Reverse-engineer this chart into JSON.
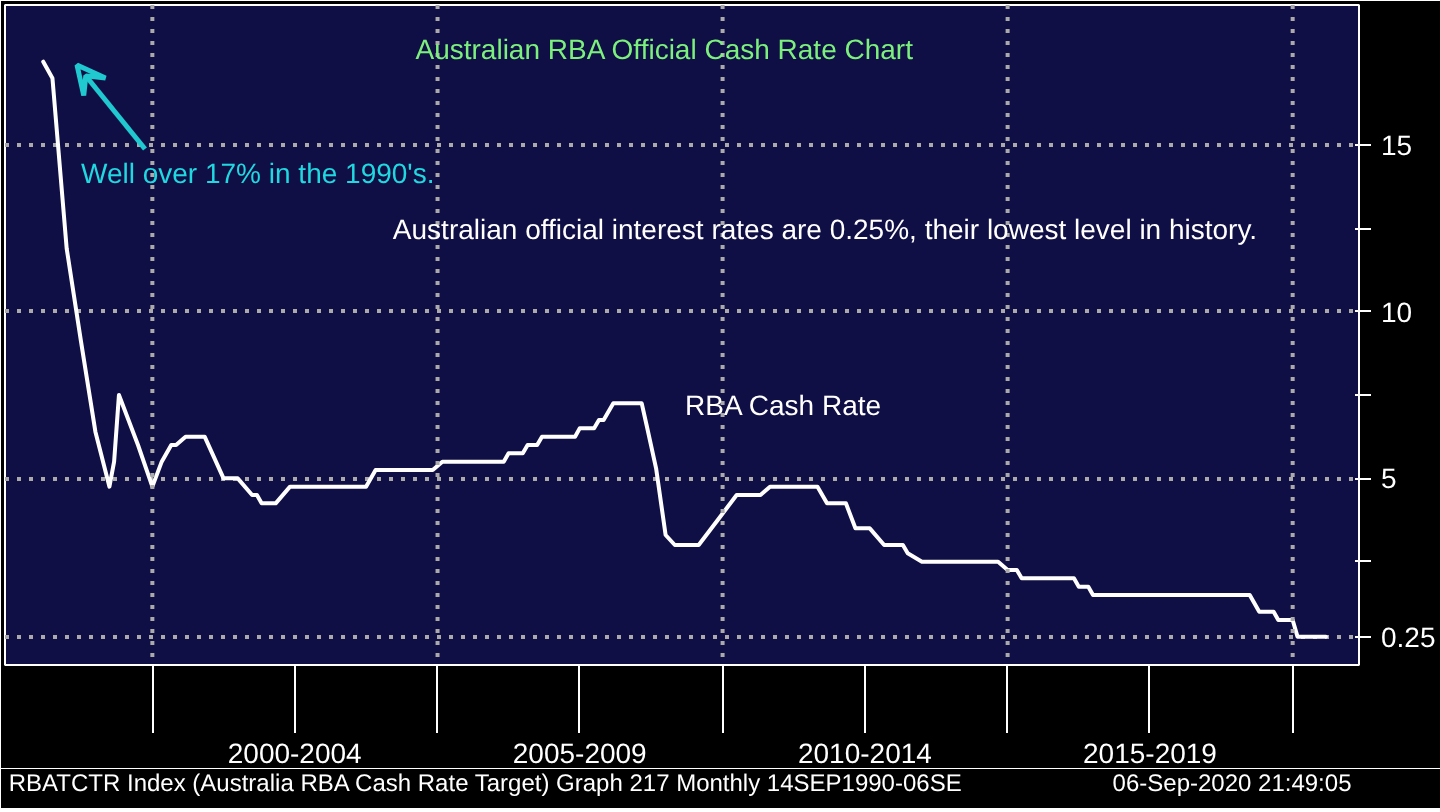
{
  "chart_data": {
    "type": "line",
    "title": "Australian RBA Official Cash Rate Chart",
    "annotations": [
      "Well over 17% in the 1990's.",
      "Australian official interest rates are 0.25%, their lowest level in history.",
      "RBATCTR Index (Australia RBA Cash Rate Target) Graph 217  Monthly 14SEP1990-06SE",
      "06-Sep-2020 21:49:05"
    ],
    "x": [
      "1998-02",
      "1998-04",
      "1998-07",
      "1998-10",
      "1999-01",
      "1999-04",
      "1999-05",
      "1999-06",
      "1999-10",
      "2000-01",
      "2000-03",
      "2000-05",
      "2000-06",
      "2000-08",
      "2000-12",
      "2001-04",
      "2001-07",
      "2001-10",
      "2001-11",
      "2001-12",
      "2002-03",
      "2002-06",
      "2003-10",
      "2003-12",
      "2004-12",
      "2005-02",
      "2006-03",
      "2006-04",
      "2006-07",
      "2006-08",
      "2006-10",
      "2006-11",
      "2007-06",
      "2007-07",
      "2007-10",
      "2007-11",
      "2007-12",
      "2008-02",
      "2008-08",
      "2008-09",
      "2008-11",
      "2009-01",
      "2009-03",
      "2009-08",
      "2009-12",
      "2010-04",
      "2010-09",
      "2010-11",
      "2011-09",
      "2011-11",
      "2012-03",
      "2012-05",
      "2012-08",
      "2012-11",
      "2013-03",
      "2013-04",
      "2013-07",
      "2014-11",
      "2015-01",
      "2015-03",
      "2015-04",
      "2016-03",
      "2016-04",
      "2016-06",
      "2016-07",
      "2019-04",
      "2019-06",
      "2019-09",
      "2019-10",
      "2020-01",
      "2020-02",
      "2020-08"
    ],
    "series": [
      {
        "name": "RBA Cash Rate",
        "color": "#ffffff",
        "values": [
          17.5,
          17.0,
          11.9,
          9.1,
          6.4,
          4.75,
          5.5,
          7.5,
          6.0,
          4.75,
          5.5,
          6.0,
          6.0,
          6.25,
          6.25,
          5.0,
          5.0,
          4.5,
          4.5,
          4.25,
          4.25,
          4.75,
          4.75,
          5.25,
          5.25,
          5.5,
          5.5,
          5.75,
          5.75,
          6.0,
          6.0,
          6.25,
          6.25,
          6.5,
          6.5,
          6.75,
          6.75,
          7.25,
          7.25,
          6.6,
          5.3,
          3.3,
          3.0,
          3.0,
          3.75,
          4.5,
          4.5,
          4.75,
          4.75,
          4.25,
          4.25,
          3.5,
          3.5,
          3.0,
          3.0,
          2.75,
          2.5,
          2.5,
          2.25,
          2.25,
          2.0,
          2.0,
          1.75,
          1.75,
          1.5,
          1.5,
          1.0,
          1.0,
          0.75,
          0.75,
          0.25,
          0.25
        ]
      }
    ],
    "xlim": [
      "1997-06",
      "2021-03"
    ],
    "ylim": [
      -0.6,
      19.2
    ],
    "xticks": [
      {
        "value": "2000-01",
        "label": null
      },
      {
        "value": "2002-07",
        "label": "2000-2004"
      },
      {
        "value": "2005-01",
        "label": null
      },
      {
        "value": "2007-07",
        "label": "2005-2009"
      },
      {
        "value": "2010-01",
        "label": null
      },
      {
        "value": "2012-07",
        "label": "2010-2014"
      },
      {
        "value": "2015-01",
        "label": null
      },
      {
        "value": "2017-07",
        "label": "2015-2019"
      },
      {
        "value": "2020-01",
        "label": null
      }
    ],
    "yticks": [
      {
        "value": 0.25,
        "label": "0.25"
      },
      {
        "value": 2.5,
        "label": null
      },
      5,
      {
        "value": 7.5,
        "label": null
      },
      10,
      {
        "value": 12.5,
        "label": null
      },
      15
    ],
    "grid": true,
    "marker": "none",
    "line_style": "solid"
  }
}
